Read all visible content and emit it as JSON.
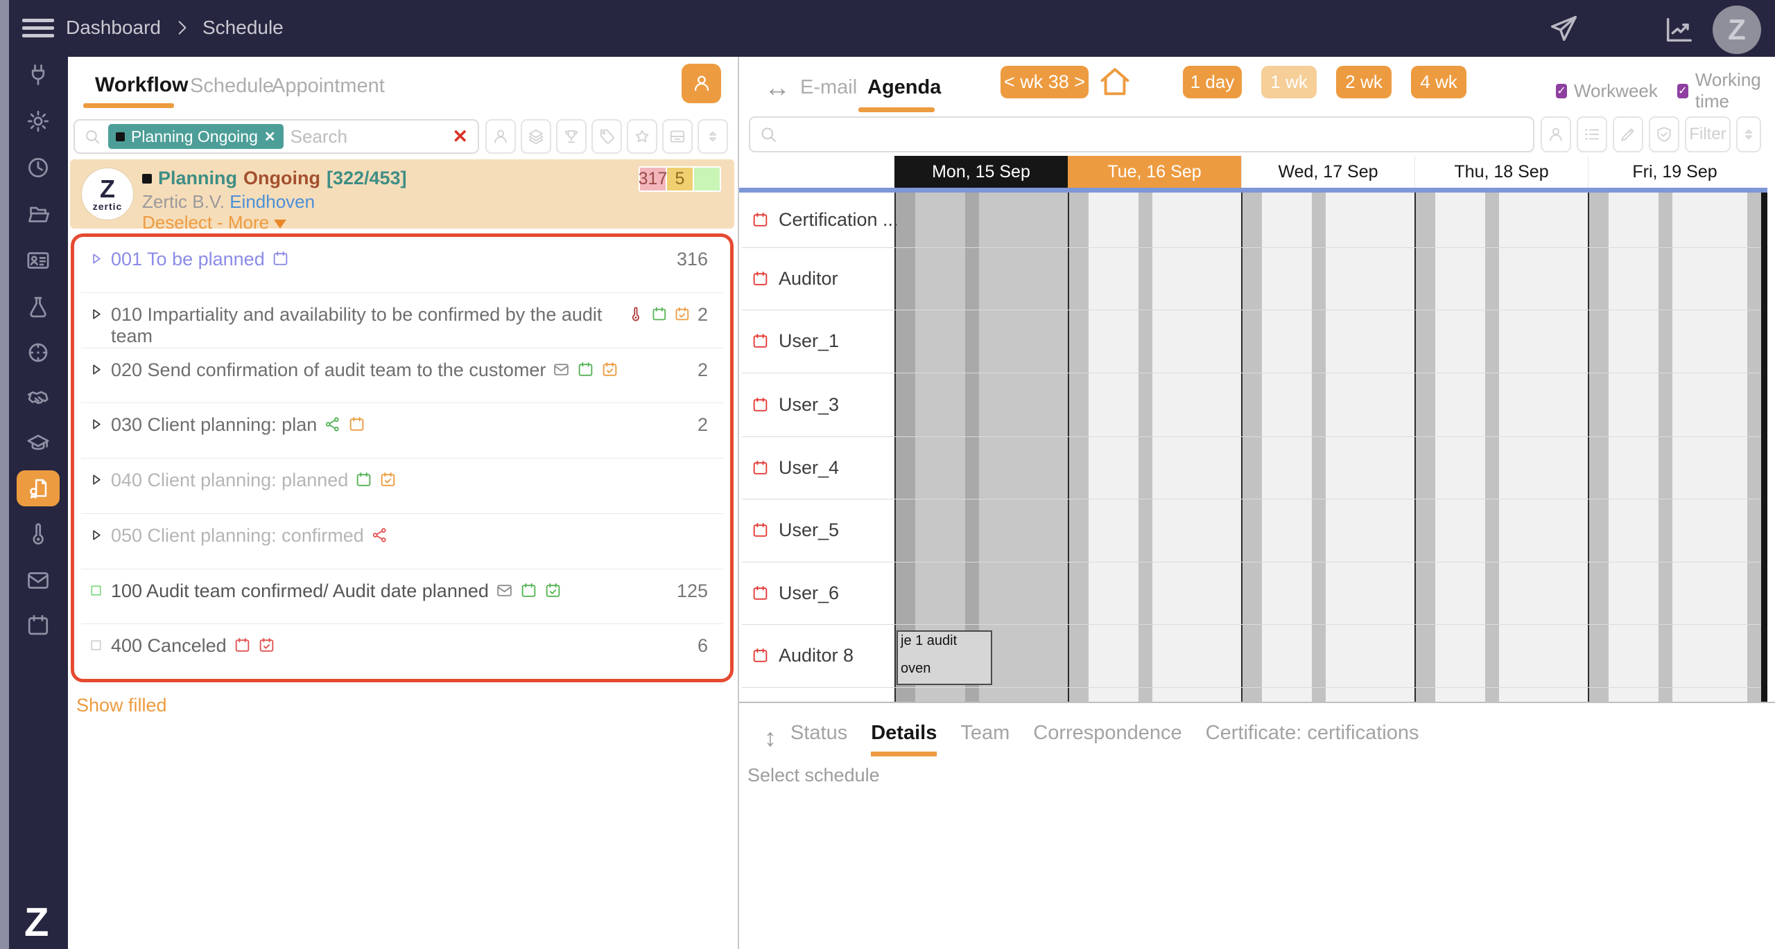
{
  "colors": {
    "accent": "#ED9B40",
    "accent_light": "#F5CE98",
    "topbar_bg": "#262640",
    "chip_teal": "#4D9E98",
    "card_bg": "#F6DDBA",
    "list_border_red": "#E54A32",
    "link_blue": "#4A90D9",
    "checkbox_purple": "#8E3FA0",
    "blue_line": "#7D97D8",
    "day_selected_bg": "#161616"
  },
  "topbar": {
    "breadcrumb": {
      "level1": "Dashboard",
      "level2": "Schedule"
    },
    "avatar_initial": "Z"
  },
  "sidebar": {
    "items": [
      {
        "name": "plug"
      },
      {
        "name": "gear"
      },
      {
        "name": "clock"
      },
      {
        "name": "folder-open"
      },
      {
        "name": "id-card"
      },
      {
        "name": "flask"
      },
      {
        "name": "target"
      },
      {
        "name": "handshake"
      },
      {
        "name": "graduation-cap"
      },
      {
        "name": "certificate",
        "active": true
      },
      {
        "name": "thermometer"
      },
      {
        "name": "envelope"
      },
      {
        "name": "calendar"
      }
    ],
    "logo": "Z"
  },
  "left_panel": {
    "tabs": [
      {
        "label": "Workflow",
        "active": true
      },
      {
        "label": "Schedule"
      },
      {
        "label": "Appointment"
      }
    ],
    "search": {
      "chip_label": "Planning Ongoing",
      "chip_remove": "✕",
      "placeholder": "Search",
      "clear": "✕"
    },
    "toolbar_icons": [
      "person",
      "layers",
      "trophy",
      "tag",
      "star",
      "card",
      "sort"
    ],
    "selection_card": {
      "status": "Planning",
      "phase": "Ongoing",
      "progress": "[322/453]",
      "company": "Zertic B.V.",
      "city": "Eindhoven",
      "deselect": "Deselect",
      "separator": "-",
      "more": "More",
      "logo_top": "Z",
      "logo_bottom": "zertic",
      "badges": [
        {
          "value": "317",
          "bg": "#F2B6BB",
          "fg": "#9C4A4A"
        },
        {
          "value": "5",
          "bg": "#EFCF70",
          "fg": "#8A6D20"
        },
        {
          "value": "",
          "bg": "#C9F5B6",
          "fg": "#4A7A3A"
        }
      ]
    },
    "workflow_rows": [
      {
        "glyph": "triangle",
        "glyph_color": "#8B8BE8",
        "label": "001 To be planned",
        "label_color": "#8B8BE8",
        "icons": [
          {
            "name": "calendar",
            "color": "#8B8BE8"
          }
        ],
        "count": "316"
      },
      {
        "glyph": "triangle",
        "glyph_color": "#3A3A3A",
        "label": "010 Impartiality and availability to be confirmed by the audit team",
        "label_color": "#6E6E6E",
        "icons": [
          {
            "name": "thermometer",
            "color": "#B03A3A"
          },
          {
            "name": "calendar",
            "color": "#55B455"
          },
          {
            "name": "calendar-check",
            "color": "#ED9B40"
          }
        ],
        "count": "2"
      },
      {
        "glyph": "triangle",
        "glyph_color": "#3A3A3A",
        "label": "020 Send confirmation of audit team to the customer",
        "label_color": "#6E6E6E",
        "icons": [
          {
            "name": "envelope",
            "color": "#8E8E8E"
          },
          {
            "name": "calendar",
            "color": "#55B455"
          },
          {
            "name": "calendar-check",
            "color": "#ED9B40"
          }
        ],
        "count": "2"
      },
      {
        "glyph": "triangle",
        "glyph_color": "#3A3A3A",
        "label": "030 Client planning: plan",
        "label_color": "#6E6E6E",
        "icons": [
          {
            "name": "share",
            "color": "#55B455"
          },
          {
            "name": "calendar",
            "color": "#ED9B40"
          }
        ],
        "count": "2"
      },
      {
        "glyph": "triangle",
        "glyph_color": "#3A3A3A",
        "label": "040 Client planning: planned",
        "label_color": "#B5B5B5",
        "icons": [
          {
            "name": "calendar",
            "color": "#55B455"
          },
          {
            "name": "calendar-check",
            "color": "#ED9B40"
          }
        ],
        "count": ""
      },
      {
        "glyph": "triangle",
        "glyph_color": "#3A3A3A",
        "label": "050 Client planning: confirmed",
        "label_color": "#B5B5B5",
        "icons": [
          {
            "name": "share",
            "color": "#E05353"
          }
        ],
        "count": ""
      },
      {
        "glyph": "square",
        "glyph_color": "#7ED87E",
        "label": "100 Audit team confirmed/ Audit date planned",
        "label_color": "#555555",
        "icons": [
          {
            "name": "envelope",
            "color": "#8E8E8E"
          },
          {
            "name": "calendar",
            "color": "#55B455"
          },
          {
            "name": "calendar-check",
            "color": "#55B455"
          }
        ],
        "count": "125"
      },
      {
        "glyph": "square",
        "glyph_color": "#CFCFCF",
        "label": "400 Canceled",
        "label_color": "#666666",
        "icons": [
          {
            "name": "calendar",
            "color": "#E05353"
          },
          {
            "name": "calendar-check",
            "color": "#E05353"
          }
        ],
        "count": "6"
      }
    ],
    "show_filled": "Show filled"
  },
  "right_panel": {
    "tabs": {
      "email": "E-mail",
      "agenda": "Agenda"
    },
    "week_nav": "< wk 38 >",
    "range_buttons": [
      {
        "label": "1 day"
      },
      {
        "label": "1 wk",
        "light": true
      },
      {
        "label": "2 wk"
      },
      {
        "label": "4 wk"
      }
    ],
    "toggles": [
      {
        "label": "Workweek",
        "checked": true
      },
      {
        "label": "Working time",
        "checked": true
      }
    ],
    "toolbar": {
      "icons": [
        "person",
        "list",
        "pen",
        "shield-check"
      ],
      "filter_label": "Filter",
      "sort_icon": "sort"
    },
    "agenda": {
      "days": [
        {
          "label": "Mon, 15 Sep",
          "style": "selected"
        },
        {
          "label": "Tue, 16 Sep",
          "style": "today"
        },
        {
          "label": "Wed, 17 Sep",
          "style": "normal"
        },
        {
          "label": "Thu, 18 Sep",
          "style": "normal"
        },
        {
          "label": "Fri, 19 Sep",
          "style": "normal"
        }
      ],
      "resources": [
        "Certification ...",
        "Auditor",
        "User_1",
        "User_3",
        "User_4",
        "User_5",
        "User_6",
        "Auditor 8"
      ],
      "event": {
        "resource": "Auditor 8",
        "day_index": 0,
        "line1": "je 1 audit",
        "line2": "oven"
      }
    },
    "detail_tabs": [
      {
        "label": "Status"
      },
      {
        "label": "Details",
        "active": true
      },
      {
        "label": "Team"
      },
      {
        "label": "Correspondence"
      },
      {
        "label": "Certificate: certifications"
      }
    ],
    "empty_message": "Select schedule"
  }
}
